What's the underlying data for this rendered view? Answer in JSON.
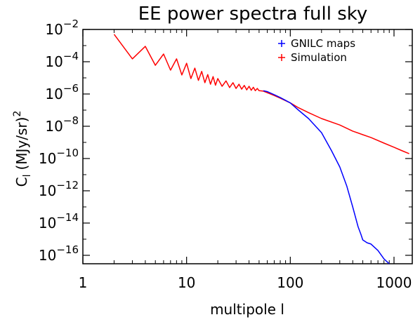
{
  "chart_data": {
    "type": "line",
    "title": "EE power spectra full sky",
    "xlabel": "multipole l",
    "ylabel": "C_l (MJy/sr)^2",
    "ylabel_main": "C",
    "ylabel_sub": "l",
    "ylabel_unit": "(MJy/sr)",
    "ylabel_sup": "2",
    "x_scale": "log",
    "y_scale": "log",
    "xlim": [
      1,
      1500
    ],
    "ylim": [
      3e-17,
      0.01
    ],
    "legend_position": "top-right",
    "grid": false,
    "x_ticks": [
      {
        "value": 1,
        "label": "1"
      },
      {
        "value": 10,
        "label": "10"
      },
      {
        "value": 100,
        "label": "100"
      },
      {
        "value": 1000,
        "label": "1000"
      }
    ],
    "y_ticks": [
      {
        "value": 0.01,
        "base": "10",
        "exp": "-2"
      },
      {
        "value": 0.0001,
        "base": "10",
        "exp": "-4"
      },
      {
        "value": 1e-06,
        "base": "10",
        "exp": "-6"
      },
      {
        "value": 1e-08,
        "base": "10",
        "exp": "-8"
      },
      {
        "value": 1e-10,
        "base": "10",
        "exp": "-10"
      },
      {
        "value": 1e-12,
        "base": "10",
        "exp": "-12"
      },
      {
        "value": 1e-14,
        "base": "10",
        "exp": "-14"
      },
      {
        "value": 1e-16,
        "base": "10",
        "exp": "-16"
      }
    ],
    "series": [
      {
        "name": "GNILC maps",
        "color": "#0000ff",
        "marker": "+",
        "x": [
          55,
          60,
          70,
          80,
          90,
          100,
          120,
          150,
          200,
          250,
          300,
          350,
          400,
          450,
          480,
          500,
          550,
          600,
          700,
          800,
          900
        ],
        "y": [
          1.6e-06,
          1.4e-06,
          9e-07,
          6e-07,
          4e-07,
          2.8e-07,
          1e-07,
          3e-08,
          4e-09,
          3e-10,
          3e-11,
          2e-12,
          1e-13,
          6e-15,
          2e-15,
          9e-16,
          6e-16,
          5e-16,
          2e-16,
          6e-17,
          3e-17
        ]
      },
      {
        "name": "Simulation",
        "color": "#ff0000",
        "marker": "+",
        "x": [
          2,
          3,
          4,
          5,
          6,
          7,
          8,
          9,
          10,
          11,
          12,
          13,
          14,
          15,
          16,
          17,
          18,
          19,
          20,
          22,
          24,
          26,
          28,
          30,
          32,
          34,
          36,
          38,
          40,
          42,
          44,
          46,
          48,
          50,
          55,
          60,
          70,
          80,
          100,
          120,
          150,
          200,
          300,
          400,
          500,
          600,
          800,
          1000,
          1200,
          1400
        ],
        "y": [
          0.005,
          0.00015,
          0.0009,
          6e-05,
          0.0003,
          3e-05,
          0.00015,
          1.5e-05,
          8e-05,
          9e-06,
          4e-05,
          7e-06,
          2.5e-05,
          5e-06,
          1.6e-05,
          4e-06,
          1.2e-05,
          3.5e-06,
          9e-06,
          3e-06,
          6.5e-06,
          2.5e-06,
          5e-06,
          2.2e-06,
          4e-06,
          2e-06,
          3.4e-06,
          1.8e-06,
          3e-06,
          1.7e-06,
          2.6e-06,
          1.6e-06,
          2.2e-06,
          1.6e-06,
          1.5e-06,
          1.2e-06,
          8e-07,
          5.5e-07,
          2.8e-07,
          1.4e-07,
          7e-08,
          3e-08,
          1.2e-08,
          5e-09,
          3e-09,
          2e-09,
          9e-10,
          5e-10,
          3e-10,
          2e-10
        ]
      }
    ]
  }
}
